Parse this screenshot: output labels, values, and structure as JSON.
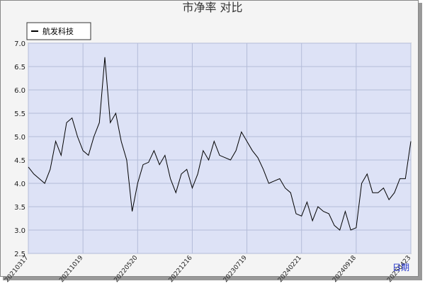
{
  "chart_data": {
    "type": "line",
    "title": "市净率  对比",
    "xlabel": "日期",
    "categories": [
      "20210317",
      null,
      null,
      null,
      null,
      null,
      null,
      null,
      null,
      null,
      "20211019",
      null,
      null,
      null,
      null,
      null,
      null,
      null,
      null,
      null,
      "20220520",
      null,
      null,
      null,
      null,
      null,
      null,
      null,
      null,
      null,
      "20221216",
      null,
      null,
      null,
      null,
      null,
      null,
      null,
      null,
      null,
      "20230719",
      null,
      null,
      null,
      null,
      null,
      null,
      null,
      null,
      null,
      "20240221",
      null,
      null,
      null,
      null,
      null,
      null,
      null,
      null,
      null,
      "20240918",
      null,
      null,
      null,
      null,
      null,
      null,
      null,
      null,
      null,
      "20250423"
    ],
    "series": [
      {
        "name": "航发科技",
        "color": "#000000",
        "values": [
          4.35,
          4.2,
          4.1,
          4.0,
          4.3,
          4.9,
          4.6,
          5.3,
          5.4,
          5.0,
          4.7,
          4.6,
          5.0,
          5.3,
          6.7,
          5.3,
          5.5,
          4.9,
          4.5,
          3.4,
          4.0,
          4.4,
          4.45,
          4.7,
          4.4,
          4.6,
          4.1,
          3.8,
          4.2,
          4.3,
          3.9,
          4.2,
          4.7,
          4.5,
          4.9,
          4.6,
          4.55,
          4.5,
          4.7,
          5.1,
          4.9,
          4.7,
          4.55,
          4.3,
          4.0,
          4.05,
          4.1,
          3.9,
          3.8,
          3.35,
          3.3,
          3.6,
          3.2,
          3.5,
          3.4,
          3.35,
          3.1,
          3.0,
          3.4,
          3.0,
          3.05,
          4.0,
          4.2,
          3.8,
          3.8,
          3.9,
          3.65,
          3.8,
          4.1,
          4.1,
          4.9
        ]
      }
    ],
    "ylim": [
      2.5,
      7.0
    ],
    "yticks": [
      {
        "value": 2.5,
        "label": "2.5"
      },
      {
        "value": 3,
        "label": "3.0"
      },
      {
        "value": 3.5,
        "label": "3.5"
      },
      {
        "value": 4,
        "label": "4.0"
      },
      {
        "value": 4.5,
        "label": "4.5"
      },
      {
        "value": 5,
        "label": "5.0"
      },
      {
        "value": 5.5,
        "label": "5.5"
      },
      {
        "value": 6,
        "label": "6.0"
      },
      {
        "value": 6.5,
        "label": "6.5"
      },
      {
        "value": 7,
        "label": "7.0"
      }
    ],
    "grid": true,
    "legend": "top-left"
  }
}
